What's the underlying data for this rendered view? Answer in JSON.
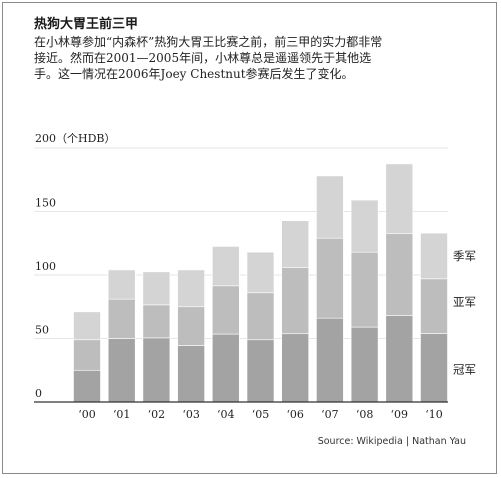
{
  "title": "热狗大胃王前三甲",
  "subtitle": "在小林尊参加“内森杯”热狗大胃王比赛之前，前三甲的实力都非常接近。然而在2001—2005年间，小林尊总是遥遥领先于其他选手。这一情况在2006年Joey Chestnut参赛后发生了变化。",
  "source": "Source: Wikipedia | Nathan Yau",
  "colors": {
    "champion": "#a3a3a3",
    "runner_up": "#bdbdbd",
    "third": "#d4d4d4",
    "axis": "#333333",
    "grid": "#e6e6e6"
  },
  "chart_data": {
    "type": "bar",
    "stacked": true,
    "categories": [
      "‘00",
      "‘01",
      "‘02",
      "‘03",
      "‘04",
      "‘05",
      "‘06",
      "‘07",
      "‘08",
      "‘09",
      "‘10"
    ],
    "series": [
      {
        "name": "冠军",
        "values": [
          25,
          50,
          50.5,
          44.5,
          53.5,
          49,
          53.75,
          66,
          59,
          68,
          54
        ]
      },
      {
        "name": "亚军",
        "values": [
          24,
          31,
          26,
          30.5,
          38,
          37,
          52,
          63,
          59,
          64.5,
          43
        ]
      },
      {
        "name": "季军",
        "values": [
          22,
          23,
          26,
          29,
          31,
          32,
          37,
          49,
          41,
          55,
          36
        ]
      }
    ],
    "ylabel": "200（个HDB）",
    "y_ticks": [
      "0",
      "50",
      "100",
      "150",
      "200"
    ],
    "ylim": [
      0,
      200
    ],
    "grid": true,
    "legend": "inline-right"
  }
}
